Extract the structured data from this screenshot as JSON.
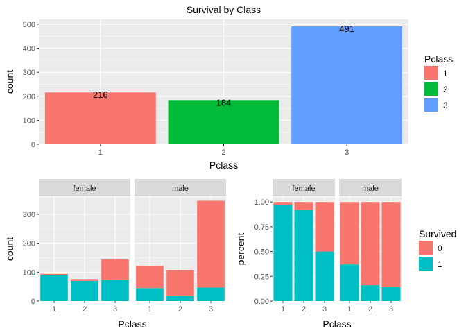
{
  "chart_data": [
    {
      "type": "bar",
      "title": "Survival by Class",
      "xlabel": "Pclass",
      "ylabel": "count",
      "categories": [
        "1",
        "2",
        "3"
      ],
      "values": [
        216,
        184,
        491
      ],
      "data_labels": [
        "216",
        "184",
        "491"
      ],
      "bar_colors": [
        "#F8766D",
        "#00BA38",
        "#619CFF"
      ],
      "ylim": [
        0,
        520
      ],
      "yticks": [
        0,
        100,
        200,
        300,
        400,
        500
      ],
      "grid": true,
      "legend": {
        "title": "Pclass",
        "position": "right",
        "entries": [
          {
            "label": "1",
            "color": "#F8766D"
          },
          {
            "label": "2",
            "color": "#00BA38"
          },
          {
            "label": "3",
            "color": "#619CFF"
          }
        ]
      }
    },
    {
      "type": "bar",
      "stacked": true,
      "facets": [
        "female",
        "male"
      ],
      "xlabel": "Pclass",
      "ylabel": "count",
      "categories": [
        "1",
        "2",
        "3"
      ],
      "ylim": [
        0,
        360
      ],
      "yticks": [
        0,
        100,
        200,
        300
      ],
      "grid": true,
      "series": [
        {
          "name": "1",
          "color": "#00BFC4",
          "values": {
            "female": [
              91,
              70,
              72
            ],
            "male": [
              45,
              17,
              47
            ]
          }
        },
        {
          "name": "0",
          "color": "#F8766D",
          "values": {
            "female": [
              3,
              6,
              72
            ],
            "male": [
              77,
              91,
              300
            ]
          }
        }
      ]
    },
    {
      "type": "bar",
      "stacked": true,
      "position": "fill",
      "facets": [
        "female",
        "male"
      ],
      "xlabel": "Pclass",
      "ylabel": "percent",
      "categories": [
        "1",
        "2",
        "3"
      ],
      "ylim": [
        0,
        1.05
      ],
      "yticks": [
        0.0,
        0.25,
        0.5,
        0.75,
        1.0
      ],
      "ytick_labels": [
        "0.00",
        "0.25",
        "0.50",
        "0.75",
        "1.00"
      ],
      "grid": true,
      "series": [
        {
          "name": "1",
          "color": "#00BFC4",
          "values": {
            "female": [
              0.97,
              0.92,
              0.5
            ],
            "male": [
              0.37,
              0.16,
              0.14
            ]
          }
        },
        {
          "name": "0",
          "color": "#F8766D",
          "values": {
            "female": [
              0.03,
              0.08,
              0.5
            ],
            "male": [
              0.63,
              0.84,
              0.86
            ]
          }
        }
      ],
      "legend": {
        "title": "Survived",
        "position": "right",
        "entries": [
          {
            "label": "0",
            "color": "#F8766D"
          },
          {
            "label": "1",
            "color": "#00BFC4"
          }
        ]
      }
    }
  ]
}
